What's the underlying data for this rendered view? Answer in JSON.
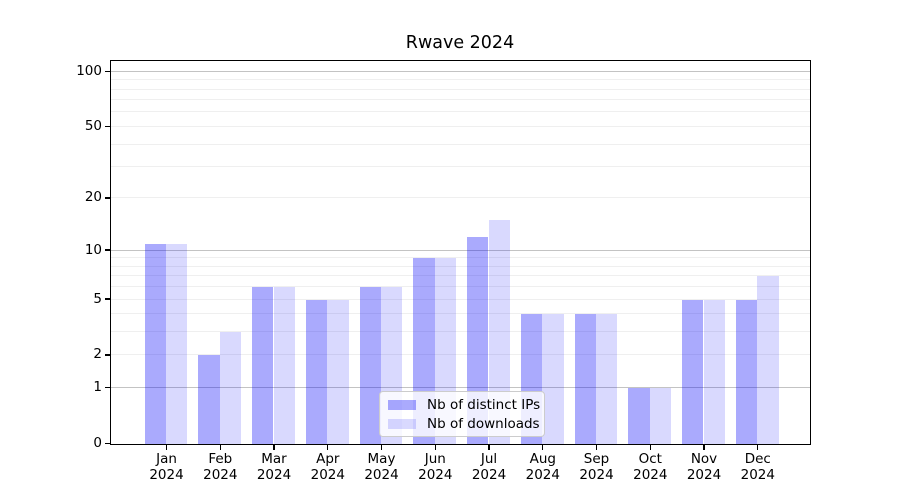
{
  "chart_data": {
    "type": "bar",
    "title": "Rwave 2024",
    "categories": [
      "Jan",
      "Feb",
      "Mar",
      "Apr",
      "May",
      "Jun",
      "Jul",
      "Aug",
      "Sep",
      "Oct",
      "Nov",
      "Dec"
    ],
    "x_tick_year": "2024",
    "series": [
      {
        "name": "Nb of distinct IPs",
        "color": "rgba(0,0,250,0.335)",
        "values": [
          11,
          2,
          6,
          5,
          6,
          9,
          12,
          4,
          4,
          1,
          5,
          5
        ]
      },
      {
        "name": "Nb of downloads",
        "color": "rgba(0,0,250,0.15)",
        "values": [
          11,
          3,
          6,
          5,
          6,
          9,
          15,
          4,
          4,
          1,
          5,
          7
        ]
      }
    ],
    "yscale": "log1p",
    "ylim": [
      0,
      113
    ],
    "ytick_values": [
      0,
      1,
      2,
      5,
      10,
      20,
      50,
      100
    ],
    "grid_major_values": [
      1,
      10,
      100
    ],
    "grid_minor_values": [
      2,
      3,
      4,
      5,
      6,
      7,
      8,
      9,
      20,
      30,
      40,
      50,
      60,
      70,
      80,
      90
    ],
    "legend": {
      "position": "lower-center"
    },
    "colors": {
      "bar_distinct_ips_hex": "#aaaaf9",
      "bar_downloads_hex": "#d9d9fa",
      "grid_major": "#c3c3c3",
      "grid_minor": "#efefef",
      "axis": "#000000",
      "legend_border": "#cccccc"
    }
  }
}
